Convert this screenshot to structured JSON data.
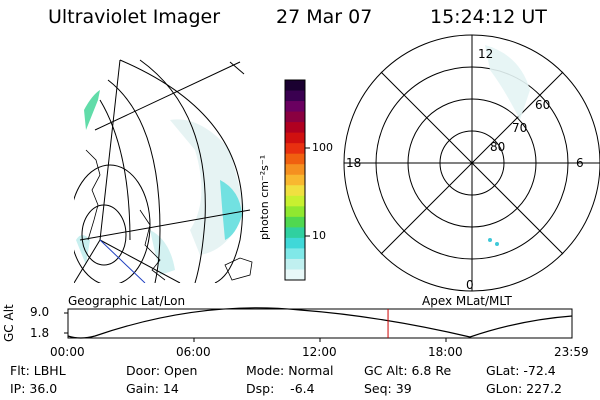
{
  "header": {
    "title": "Ultraviolet Imager",
    "date": "27 Mar 07",
    "time": "15:24:12 UT"
  },
  "colorbar": {
    "label": "photon cm⁻²s⁻¹",
    "ticks": [
      "100",
      "10"
    ],
    "colors": [
      "#1a0030",
      "#3a0050",
      "#6a0060",
      "#8a0040",
      "#b00020",
      "#d01010",
      "#e83010",
      "#f06010",
      "#f59020",
      "#f8b830",
      "#f0e040",
      "#c8f030",
      "#90e830",
      "#50d850",
      "#30d0a0",
      "#40d8d8",
      "#80e8e8",
      "#c0f0f0",
      "#e8f8f8"
    ]
  },
  "panels": {
    "left_label": "Geographic Lat/Lon",
    "right_label": "Apex MLat/MLT"
  },
  "polar": {
    "mlt_labels": {
      "top": "12",
      "left": "18",
      "right": "6",
      "bottom": "0"
    },
    "lat_labels": [
      "60",
      "70",
      "80"
    ]
  },
  "altitude_plot": {
    "axis_label": "GC Alt",
    "y_ticks": [
      "9.0",
      "1.8"
    ],
    "x_ticks": [
      "00:00",
      "06:00",
      "12:00",
      "18:00",
      "23:59"
    ],
    "current_time_fraction": 0.635,
    "marker_color": "#cc0000"
  },
  "info": {
    "row1": {
      "filter": "Flt: LBHL",
      "door": "Door: Open",
      "mode": "Mode: Normal",
      "gc_alt": "GC Alt: 6.8 Re",
      "glat": "GLat: -72.4"
    },
    "row2": {
      "ip": "IP: 36.0",
      "gain": "Gain: 14",
      "dsp": "Dsp:    -6.4",
      "seq": "Seq: 39",
      "glon": "GLon: 227.2"
    }
  }
}
